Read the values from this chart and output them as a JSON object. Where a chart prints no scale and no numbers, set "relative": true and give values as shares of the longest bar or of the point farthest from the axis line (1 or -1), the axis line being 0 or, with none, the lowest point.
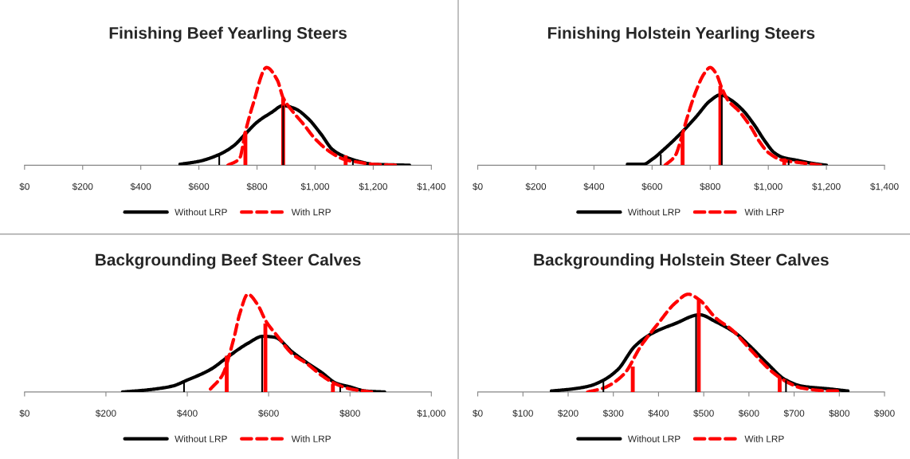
{
  "chart_data": [
    {
      "type": "line",
      "title": "Finishing Beef Yearling Steers",
      "relative": true,
      "legend": "bottom",
      "xlim": [
        0,
        1400
      ],
      "xticks": [
        {
          "value": 0,
          "label": "$0"
        },
        {
          "value": 200,
          "label": "$200"
        },
        {
          "value": 400,
          "label": "$400"
        },
        {
          "value": 600,
          "label": "$600"
        },
        {
          "value": 800,
          "label": "$800"
        },
        {
          "value": 1000,
          "label": "$1,000"
        },
        {
          "value": 1200,
          "label": "$1,200"
        },
        {
          "value": 1400,
          "label": "$1,400"
        }
      ],
      "series": [
        {
          "name": "Without LRP",
          "color": "#000000",
          "line_style": "solid",
          "x": [
            535,
            600,
            670,
            720,
            760,
            800,
            850,
            890,
            930,
            975,
            1020,
            1060,
            1100,
            1150,
            1200,
            1325
          ],
          "values": [
            0.01,
            0.04,
            0.11,
            0.2,
            0.32,
            0.44,
            0.54,
            0.61,
            0.58,
            0.48,
            0.32,
            0.16,
            0.09,
            0.04,
            0.01,
            0
          ]
        },
        {
          "name": "With LRP",
          "color": "#ff0000",
          "line_style": "dashed",
          "x": [
            700,
            740,
            760,
            785,
            833,
            870,
            890,
            920,
            960,
            1000,
            1050,
            1100,
            1150,
            1200,
            1280
          ],
          "values": [
            0,
            0.07,
            0.34,
            0.61,
            1,
            0.87,
            0.69,
            0.56,
            0.42,
            0.27,
            0.14,
            0.06,
            0.03,
            0.01,
            0
          ]
        },
        {
          "type": "bar",
          "color": "#ff0000",
          "x": [
            760,
            890,
            1105
          ],
          "values": [
            0.34,
            0.69,
            0.1
          ]
        },
        {
          "type": "bar",
          "color": "#000000",
          "x": [
            670,
            890,
            1130
          ],
          "values": [
            0.11,
            0.61,
            0.06
          ]
        }
      ]
    },
    {
      "type": "line",
      "title": "Finishing Holstein Yearling Steers",
      "relative": true,
      "legend": "bottom",
      "xlim": [
        0,
        1400
      ],
      "xticks": [
        {
          "value": 0,
          "label": "$0"
        },
        {
          "value": 200,
          "label": "$200"
        },
        {
          "value": 400,
          "label": "$400"
        },
        {
          "value": 600,
          "label": "$600"
        },
        {
          "value": 800,
          "label": "$800"
        },
        {
          "value": 1000,
          "label": "$1,000"
        },
        {
          "value": 1200,
          "label": "$1,200"
        },
        {
          "value": 1400,
          "label": "$1,400"
        }
      ],
      "series": [
        {
          "name": "Without LRP",
          "color": "#000000",
          "line_style": "solid",
          "x": [
            515,
            570,
            600,
            640,
            700,
            750,
            800,
            835,
            870,
            910,
            950,
            990,
            1020,
            1050,
            1100,
            1150,
            1200
          ],
          "values": [
            0.01,
            0.01,
            0.06,
            0.16,
            0.33,
            0.49,
            0.66,
            0.72,
            0.67,
            0.57,
            0.42,
            0.24,
            0.13,
            0.08,
            0.05,
            0.02,
            0
          ]
        },
        {
          "name": "With LRP",
          "color": "#ff0000",
          "line_style": "dashed",
          "x": [
            645,
            680,
            700,
            720,
            750,
            780,
            800,
            820,
            840,
            860,
            900,
            940,
            970,
            1000,
            1050,
            1100,
            1180
          ],
          "values": [
            0,
            0.1,
            0.27,
            0.48,
            0.75,
            0.94,
            1,
            0.94,
            0.79,
            0.67,
            0.55,
            0.39,
            0.24,
            0.13,
            0.05,
            0.03,
            0
          ]
        },
        {
          "type": "bar",
          "color": "#ff0000",
          "x": [
            705,
            835,
            1055
          ],
          "values": [
            0.33,
            0.81,
            0.07
          ]
        },
        {
          "type": "bar",
          "color": "#000000",
          "x": [
            630,
            840,
            1070
          ],
          "values": [
            0.11,
            0.72,
            0.05
          ]
        }
      ]
    },
    {
      "type": "line",
      "title": "Backgrounding Beef Steer Calves",
      "relative": true,
      "legend": "bottom",
      "xlim": [
        0,
        1000
      ],
      "xticks": [
        {
          "value": 0,
          "label": "$0"
        },
        {
          "value": 200,
          "label": "$200"
        },
        {
          "value": 400,
          "label": "$400"
        },
        {
          "value": 600,
          "label": "$600"
        },
        {
          "value": 800,
          "label": "$800"
        },
        {
          "value": 1000,
          "label": "$1,000"
        }
      ],
      "series": [
        {
          "name": "Without LRP",
          "color": "#000000",
          "line_style": "solid",
          "x": [
            241,
            299,
            363,
            399,
            457,
            500,
            550,
            586,
            615,
            658,
            694,
            730,
            766,
            802,
            838,
            885
          ],
          "values": [
            0,
            0.02,
            0.06,
            0.12,
            0.23,
            0.36,
            0.5,
            0.57,
            0.56,
            0.41,
            0.3,
            0.2,
            0.09,
            0.05,
            0.01,
            0
          ]
        },
        {
          "name": "With LRP",
          "color": "#ff0000",
          "line_style": "dashed",
          "x": [
            457,
            486,
            514,
            529,
            549,
            572,
            594,
            622,
            658,
            694,
            730,
            766,
            802,
            853
          ],
          "values": [
            0.03,
            0.17,
            0.54,
            0.8,
            1,
            0.9,
            0.72,
            0.57,
            0.39,
            0.29,
            0.17,
            0.08,
            0.03,
            0
          ]
        },
        {
          "type": "bar",
          "color": "#ff0000",
          "x": [
            497,
            592,
            758
          ],
          "values": [
            0.37,
            0.7,
            0.08
          ]
        },
        {
          "type": "bar",
          "color": "#000000",
          "x": [
            392,
            584,
            776
          ],
          "values": [
            0.11,
            0.58,
            0.05
          ]
        }
      ]
    },
    {
      "type": "line",
      "title": "Backgrounding Holstein Steer Calves",
      "relative": true,
      "legend": "bottom",
      "xlim": [
        0,
        900
      ],
      "xticks": [
        {
          "value": 0,
          "label": "$0"
        },
        {
          "value": 100,
          "label": "$100"
        },
        {
          "value": 200,
          "label": "$200"
        },
        {
          "value": 300,
          "label": "$300"
        },
        {
          "value": 400,
          "label": "$400"
        },
        {
          "value": 500,
          "label": "$500"
        },
        {
          "value": 600,
          "label": "$600"
        },
        {
          "value": 700,
          "label": "$700"
        },
        {
          "value": 800,
          "label": "$800"
        },
        {
          "value": 900,
          "label": "$900"
        }
      ],
      "series": [
        {
          "name": "Without LRP",
          "color": "#000000",
          "line_style": "solid",
          "x": [
            163,
            208,
            246,
            278,
            310,
            348,
            386,
            437,
            491,
            526,
            571,
            602,
            641,
            679,
            717,
            781,
            819
          ],
          "values": [
            0.01,
            0.03,
            0.06,
            0.12,
            0.23,
            0.47,
            0.6,
            0.7,
            0.79,
            0.72,
            0.6,
            0.47,
            0.29,
            0.13,
            0.06,
            0.03,
            0.01
          ]
        },
        {
          "name": "With LRP",
          "color": "#ff0000",
          "line_style": "dashed",
          "x": [
            243,
            278,
            323,
            361,
            399,
            437,
            466,
            491,
            526,
            564,
            602,
            653,
            685,
            717,
            781,
            806
          ],
          "values": [
            0,
            0.04,
            0.18,
            0.47,
            0.7,
            0.91,
            1,
            0.94,
            0.76,
            0.63,
            0.44,
            0.2,
            0.1,
            0.04,
            0.01,
            0.01
          ]
        },
        {
          "type": "bar",
          "color": "#ff0000",
          "x": [
            343,
            489,
            668
          ],
          "values": [
            0.26,
            0.94,
            0.15
          ]
        },
        {
          "type": "bar",
          "color": "#000000",
          "x": [
            278,
            483,
            682
          ],
          "values": [
            0.12,
            0.78,
            0.12
          ]
        }
      ]
    }
  ]
}
